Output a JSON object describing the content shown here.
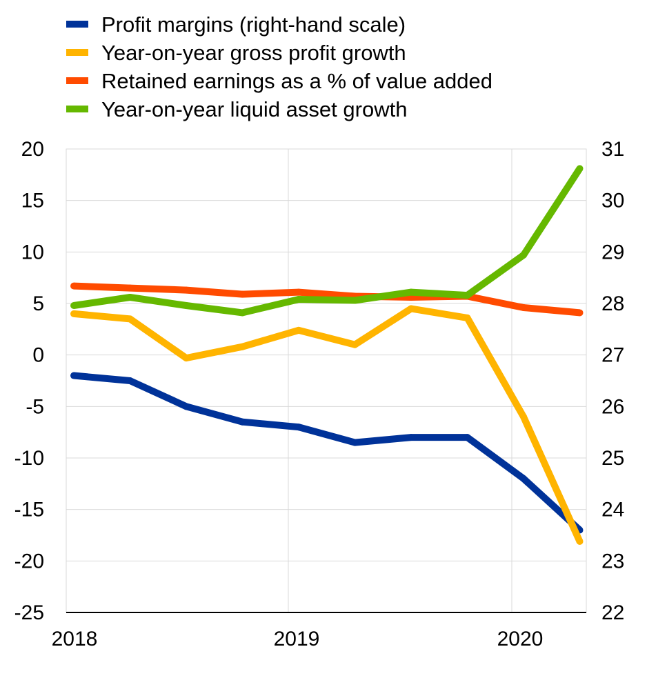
{
  "chart_data": {
    "type": "line",
    "title": "",
    "xlabel": "",
    "ylabel": "",
    "legend_position": "top-left",
    "grid": true,
    "x_ticks": [
      "2018",
      "2019",
      "2020"
    ],
    "x": [
      "2018-Q1",
      "2018-Q2",
      "2018-Q3",
      "2018-Q4",
      "2019-Q1",
      "2019-Q2",
      "2019-Q3",
      "2019-Q4",
      "2020-Q1",
      "2020-Q2"
    ],
    "xlim": [
      "2018-Q1",
      "2020-Q2"
    ],
    "ylim_left": [
      -25,
      20
    ],
    "y_ticks_left": [
      20,
      15,
      10,
      5,
      0,
      -5,
      -10,
      -15,
      -20,
      -25
    ],
    "ylim_right": [
      22,
      31
    ],
    "y_ticks_right": [
      31,
      30,
      29,
      28,
      27,
      26,
      25,
      24,
      23,
      22
    ],
    "series": [
      {
        "name": "Profit margins (right-hand scale)",
        "axis": "right",
        "color": "#003299",
        "values": [
          26.6,
          26.5,
          26.0,
          25.7,
          25.6,
          25.3,
          25.4,
          25.4,
          24.6,
          23.6
        ]
      },
      {
        "name": "Year-on-year gross profit growth",
        "axis": "left",
        "color": "#FFB400",
        "values": [
          4.0,
          3.5,
          -0.3,
          0.8,
          2.4,
          1.0,
          4.5,
          3.6,
          -6.0,
          -18.1
        ]
      },
      {
        "name": "Retained earnings as a % of value added",
        "axis": "left",
        "color": "#FF4B00",
        "values": [
          6.7,
          6.5,
          6.3,
          5.9,
          6.1,
          5.7,
          5.6,
          5.7,
          4.6,
          4.1
        ]
      },
      {
        "name": "Year-on-year liquid asset growth",
        "axis": "left",
        "color": "#65B800",
        "values": [
          4.8,
          5.6,
          4.8,
          4.1,
          5.4,
          5.3,
          6.1,
          5.8,
          9.7,
          18.1
        ]
      }
    ]
  }
}
